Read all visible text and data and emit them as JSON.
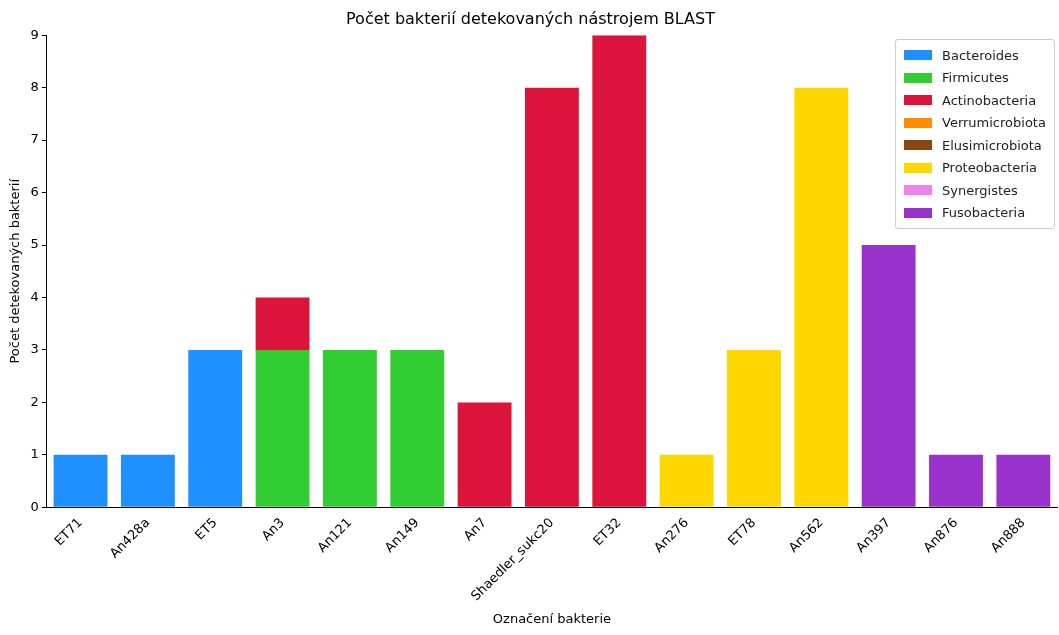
{
  "chart_data": {
    "type": "bar",
    "stacked": true,
    "title": "Počet bakterií detekovaných nástrojem BLAST",
    "xlabel": "Označení bakterie",
    "ylabel": "Počet detekovaných bakterií",
    "categories": [
      "ET71",
      "An428a",
      "ET5",
      "An3",
      "An121",
      "An149",
      "An7",
      "Shaedler_sukc20",
      "ET32",
      "An276",
      "ET78",
      "An562",
      "An397",
      "An876",
      "An888"
    ],
    "series": [
      {
        "name": "Bacteroides",
        "color": "#1e90ff",
        "values": [
          1,
          1,
          3,
          null,
          null,
          null,
          null,
          null,
          null,
          null,
          null,
          null,
          null,
          null,
          null
        ]
      },
      {
        "name": "Firmicutes",
        "color": "#32cd32",
        "values": [
          null,
          null,
          null,
          3,
          3,
          3,
          null,
          null,
          null,
          null,
          null,
          null,
          null,
          null,
          null
        ]
      },
      {
        "name": "Actinobacteria",
        "color": "#dc143c",
        "values": [
          null,
          null,
          null,
          1,
          null,
          null,
          2,
          8,
          9,
          null,
          null,
          null,
          null,
          null,
          null
        ]
      },
      {
        "name": "Verrumicrobiota",
        "color": "#ff8c00",
        "values": [
          null,
          null,
          null,
          null,
          null,
          null,
          null,
          null,
          null,
          null,
          null,
          null,
          null,
          null,
          null
        ]
      },
      {
        "name": "Elusimicrobiota",
        "color": "#8b4513",
        "values": [
          null,
          null,
          null,
          null,
          null,
          null,
          null,
          null,
          null,
          null,
          null,
          null,
          null,
          null,
          null
        ]
      },
      {
        "name": "Proteobacteria",
        "color": "#ffd700",
        "values": [
          null,
          null,
          null,
          null,
          null,
          null,
          null,
          null,
          null,
          1,
          3,
          8,
          null,
          null,
          null
        ]
      },
      {
        "name": "Synergistes",
        "color": "#ee82ee",
        "values": [
          null,
          null,
          null,
          null,
          null,
          null,
          null,
          null,
          null,
          null,
          null,
          null,
          null,
          null,
          null
        ]
      },
      {
        "name": "Fusobacteria",
        "color": "#9932cc",
        "values": [
          null,
          null,
          null,
          null,
          null,
          null,
          null,
          null,
          null,
          null,
          null,
          null,
          5,
          1,
          1
        ]
      }
    ],
    "ylim": [
      0,
      9
    ],
    "yticks": [
      0,
      1,
      2,
      3,
      4,
      5,
      6,
      7,
      8,
      9
    ],
    "grid": false,
    "legend": "top right"
  }
}
